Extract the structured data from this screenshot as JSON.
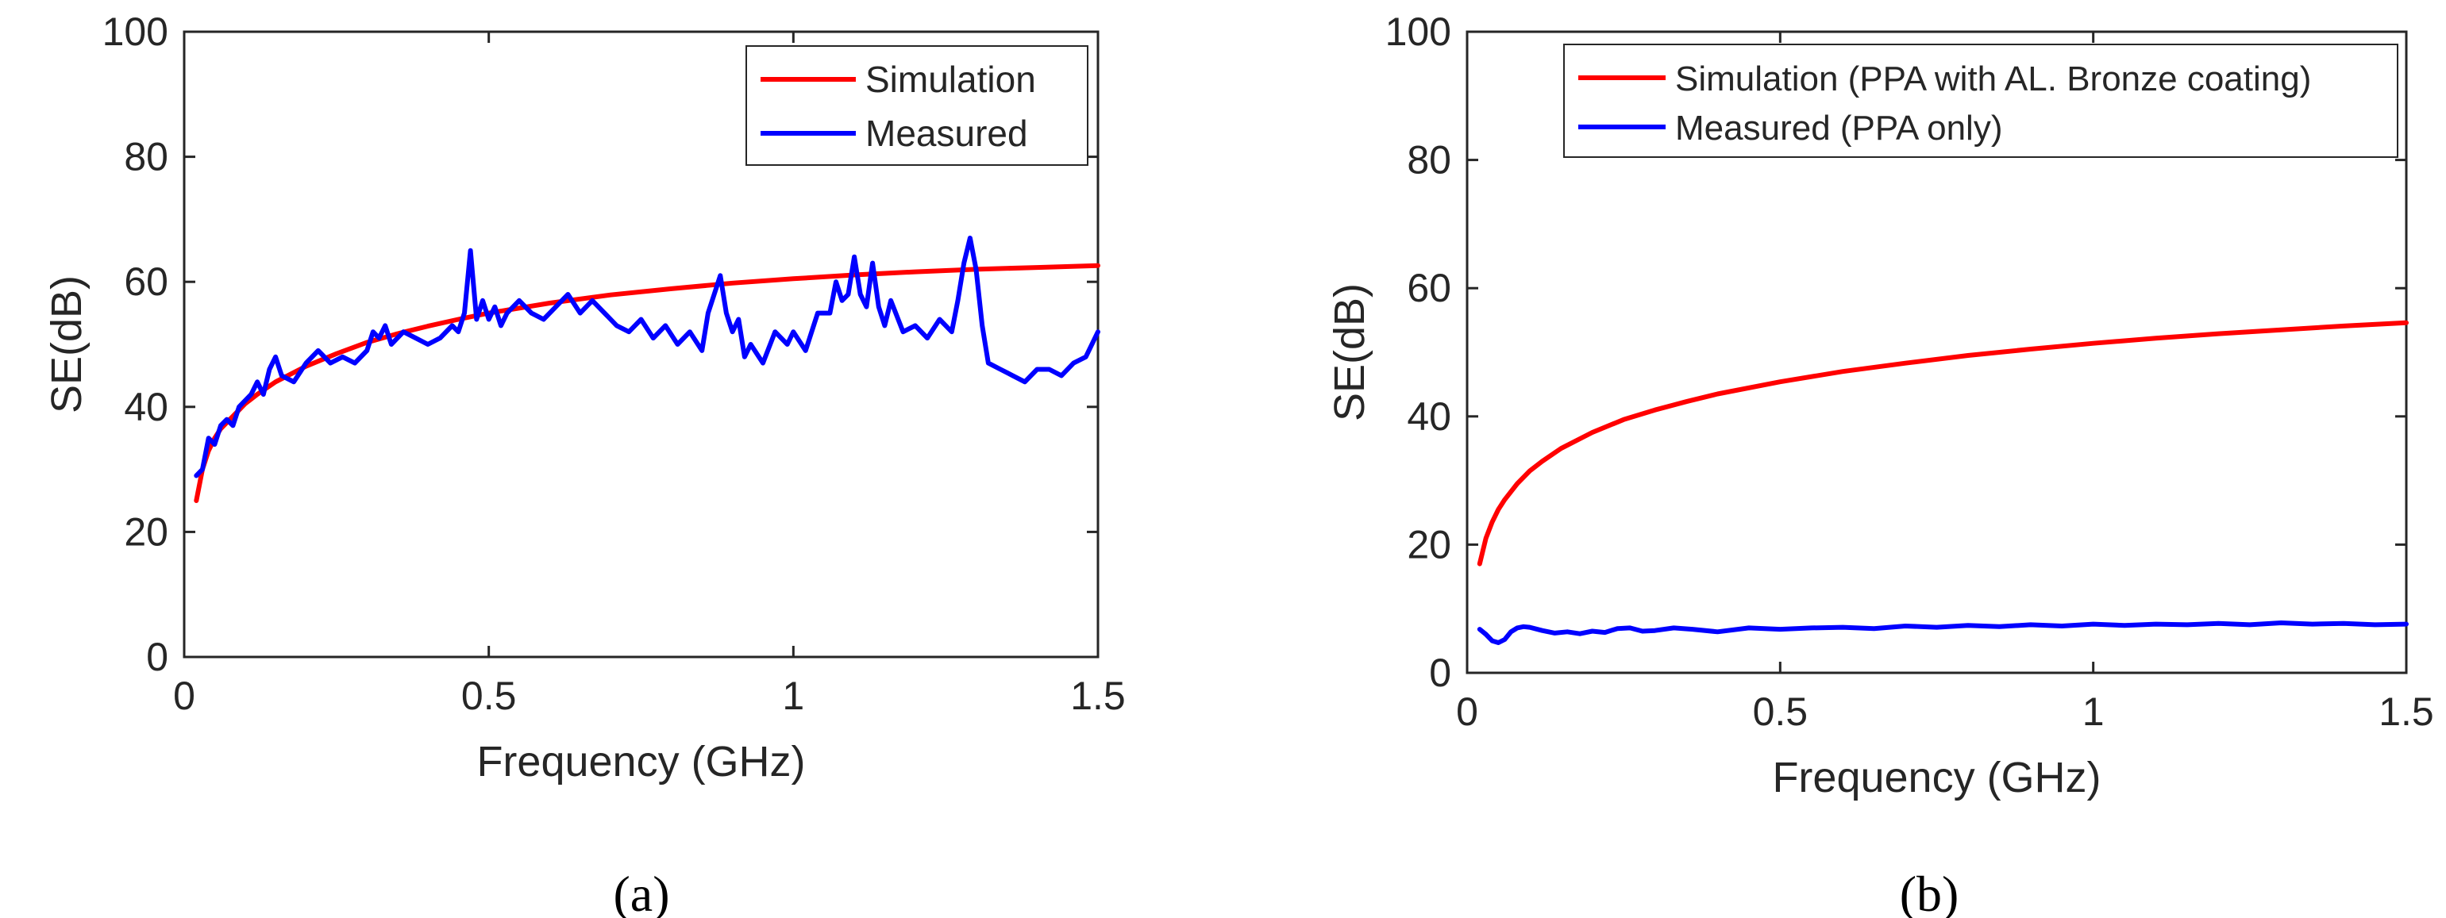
{
  "chart_data": [
    {
      "type": "line",
      "panel_label": "(a)",
      "title": "",
      "xlabel": "Frequency (GHz)",
      "ylabel": "SE(dB)",
      "xlim": [
        0,
        1.5
      ],
      "ylim": [
        0,
        100
      ],
      "xticks": [
        0,
        0.5,
        1,
        1.5
      ],
      "xtick_labels": [
        "0",
        "0.5",
        "1",
        "1.5"
      ],
      "yticks": [
        0,
        20,
        40,
        60,
        80,
        100
      ],
      "ytick_labels": [
        "0",
        "20",
        "40",
        "60",
        "80",
        "100"
      ],
      "grid": false,
      "legend_position": "top-right",
      "series": [
        {
          "name": "Simulation",
          "color": "#ff0000",
          "x": [
            0.02,
            0.03,
            0.04,
            0.05,
            0.06,
            0.08,
            0.1,
            0.12,
            0.15,
            0.2,
            0.25,
            0.3,
            0.35,
            0.4,
            0.45,
            0.5,
            0.6,
            0.7,
            0.8,
            0.9,
            1.0,
            1.1,
            1.2,
            1.3,
            1.4,
            1.5
          ],
          "values": [
            25,
            30,
            33,
            35,
            36.5,
            38.5,
            40.5,
            42,
            44,
            46.5,
            48.5,
            50.3,
            51.7,
            52.9,
            54,
            55,
            56.6,
            57.9,
            58.9,
            59.8,
            60.5,
            61.1,
            61.6,
            62,
            62.3,
            62.6
          ]
        },
        {
          "name": "Measured",
          "color": "#0000ff",
          "x": [
            0.02,
            0.03,
            0.04,
            0.05,
            0.06,
            0.07,
            0.08,
            0.09,
            0.1,
            0.11,
            0.12,
            0.13,
            0.14,
            0.15,
            0.16,
            0.18,
            0.2,
            0.22,
            0.24,
            0.26,
            0.28,
            0.3,
            0.31,
            0.32,
            0.33,
            0.34,
            0.36,
            0.38,
            0.4,
            0.42,
            0.44,
            0.45,
            0.46,
            0.47,
            0.48,
            0.49,
            0.5,
            0.51,
            0.52,
            0.53,
            0.55,
            0.57,
            0.59,
            0.61,
            0.63,
            0.65,
            0.67,
            0.69,
            0.71,
            0.73,
            0.75,
            0.77,
            0.79,
            0.81,
            0.83,
            0.85,
            0.86,
            0.87,
            0.88,
            0.89,
            0.9,
            0.91,
            0.92,
            0.93,
            0.95,
            0.97,
            0.99,
            1.0,
            1.02,
            1.04,
            1.06,
            1.07,
            1.08,
            1.09,
            1.1,
            1.11,
            1.12,
            1.13,
            1.14,
            1.15,
            1.16,
            1.18,
            1.2,
            1.22,
            1.24,
            1.26,
            1.27,
            1.28,
            1.29,
            1.3,
            1.31,
            1.32,
            1.34,
            1.36,
            1.38,
            1.4,
            1.42,
            1.44,
            1.46,
            1.48,
            1.5
          ],
          "values": [
            29,
            30,
            35,
            34,
            37,
            38,
            37,
            40,
            41,
            42,
            44,
            42,
            46,
            48,
            45,
            44,
            47,
            49,
            47,
            48,
            47,
            49,
            52,
            51,
            53,
            50,
            52,
            51,
            50,
            51,
            53,
            52,
            55,
            65,
            54,
            57,
            54,
            56,
            53,
            55,
            57,
            55,
            54,
            56,
            58,
            55,
            57,
            55,
            53,
            52,
            54,
            51,
            53,
            50,
            52,
            49,
            55,
            58,
            61,
            55,
            52,
            54,
            48,
            50,
            47,
            52,
            50,
            52,
            49,
            55,
            55,
            60,
            57,
            58,
            64,
            58,
            56,
            63,
            56,
            53,
            57,
            52,
            53,
            51,
            54,
            52,
            57,
            63,
            67,
            62,
            53,
            47,
            46,
            45,
            44,
            46,
            46,
            45,
            47,
            48,
            52
          ]
        }
      ]
    },
    {
      "type": "line",
      "panel_label": "(b)",
      "title": "",
      "xlabel": "Frequency (GHz)",
      "ylabel": "SE(dB)",
      "xlim": [
        0,
        1.5
      ],
      "ylim": [
        0,
        100
      ],
      "xticks": [
        0,
        0.5,
        1,
        1.5
      ],
      "xtick_labels": [
        "0",
        "0.5",
        "1",
        "1.5"
      ],
      "yticks": [
        0,
        20,
        40,
        60,
        80,
        100
      ],
      "ytick_labels": [
        "0",
        "20",
        "40",
        "60",
        "80",
        "100"
      ],
      "grid": false,
      "legend_position": "top-right",
      "series": [
        {
          "name": "Simulation (PPA with AL. Bronze coating)",
          "color": "#ff0000",
          "x": [
            0.02,
            0.03,
            0.04,
            0.05,
            0.06,
            0.08,
            0.1,
            0.12,
            0.15,
            0.2,
            0.25,
            0.3,
            0.35,
            0.4,
            0.5,
            0.6,
            0.7,
            0.8,
            0.9,
            1.0,
            1.1,
            1.2,
            1.3,
            1.4,
            1.5
          ],
          "values": [
            17,
            21,
            23.5,
            25.5,
            27,
            29.5,
            31.5,
            33,
            35,
            37.5,
            39.5,
            41,
            42.3,
            43.5,
            45.4,
            47,
            48.3,
            49.5,
            50.5,
            51.4,
            52.2,
            52.9,
            53.5,
            54.1,
            54.6
          ]
        },
        {
          "name": "Measured (PPA only)",
          "color": "#0000ff",
          "x": [
            0.02,
            0.03,
            0.04,
            0.05,
            0.06,
            0.07,
            0.08,
            0.09,
            0.1,
            0.12,
            0.14,
            0.16,
            0.18,
            0.2,
            0.22,
            0.24,
            0.26,
            0.28,
            0.3,
            0.33,
            0.36,
            0.4,
            0.45,
            0.5,
            0.55,
            0.6,
            0.65,
            0.7,
            0.75,
            0.8,
            0.85,
            0.9,
            0.95,
            1.0,
            1.05,
            1.1,
            1.15,
            1.2,
            1.25,
            1.3,
            1.35,
            1.4,
            1.45,
            1.5
          ],
          "values": [
            6.8,
            6,
            5,
            4.7,
            5.2,
            6.4,
            7,
            7.2,
            7.1,
            6.6,
            6.2,
            6.4,
            6.1,
            6.5,
            6.3,
            6.9,
            7,
            6.5,
            6.6,
            7,
            6.8,
            6.4,
            7,
            6.8,
            7,
            7.1,
            6.9,
            7.3,
            7.1,
            7.4,
            7.2,
            7.5,
            7.3,
            7.6,
            7.4,
            7.6,
            7.5,
            7.7,
            7.5,
            7.8,
            7.6,
            7.7,
            7.5,
            7.6
          ]
        }
      ]
    }
  ]
}
